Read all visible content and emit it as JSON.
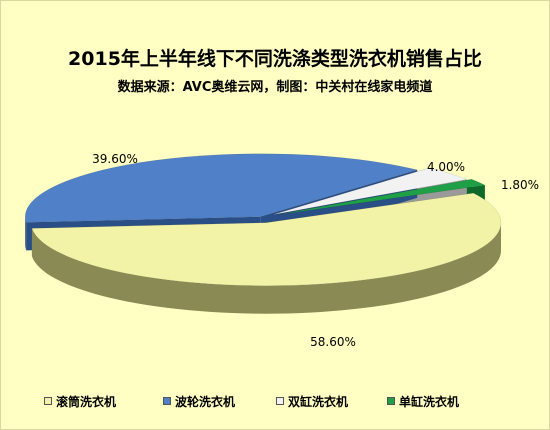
{
  "chart_data": {
    "type": "pie",
    "title": "2015年上半年线下不同洗涤类型洗衣机销售占比",
    "subtitle": "数据来源：AVC奥维云网，制图：中关村在线家电频道",
    "legend_position": "bottom",
    "series": [
      {
        "name": "滚筒洗衣机",
        "value": 58.6,
        "label": "58.60%",
        "color": "#f3f3a8",
        "side_color": "#8a8a55"
      },
      {
        "name": "波轮洗衣机",
        "value": 39.6,
        "label": "39.60%",
        "color": "#4f80c8",
        "side_color": "#2a4e86"
      },
      {
        "name": "双缸洗衣机",
        "value": 4.0,
        "label": "4.00%",
        "color": "#f2f2f2",
        "side_color": "#9a9a9a"
      },
      {
        "name": "单缸洗衣机",
        "value": 1.8,
        "label": "1.80%",
        "color": "#1fa046",
        "side_color": "#0e6a2a"
      }
    ]
  }
}
